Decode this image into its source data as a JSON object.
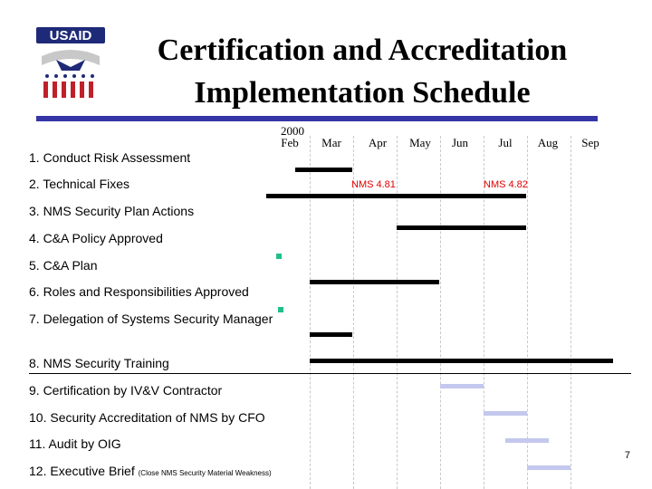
{
  "logo": {
    "text": "USAID"
  },
  "title": {
    "line1": "Certification and Accreditation",
    "line2": "Implementation Schedule"
  },
  "year": "2000",
  "months": [
    "Feb",
    "Mar",
    "Apr",
    "May",
    "Jun",
    "Jul",
    "Aug",
    "Sep"
  ],
  "tasks": [
    "1.  Conduct Risk Assessment",
    "2.  Technical Fixes",
    "3.  NMS Security Plan Actions",
    "4.  C&A Policy Approved",
    "5.  C&A Plan",
    "6.  Roles and Responsibilities Approved",
    "7.  Delegation of Systems Security Manager",
    "8.  NMS Security Training",
    "9.  Certification by IV&V Contractor",
    "10.  Security Accreditation of NMS by CFO",
    "11.  Audit by OIG",
    "12.  Executive Brief"
  ],
  "task12_note": "(Close NMS Security Material Weakness)",
  "annotations": {
    "nms481": "NMS 4.81",
    "nms482": "NMS 4.82"
  },
  "page_number": "7",
  "colors": {
    "actual_bar": "#000000",
    "planned_bar": "#c4c8ee",
    "milestone": "#1fbf8a",
    "annotation": "#e00000",
    "rule": "#3535a8"
  }
}
